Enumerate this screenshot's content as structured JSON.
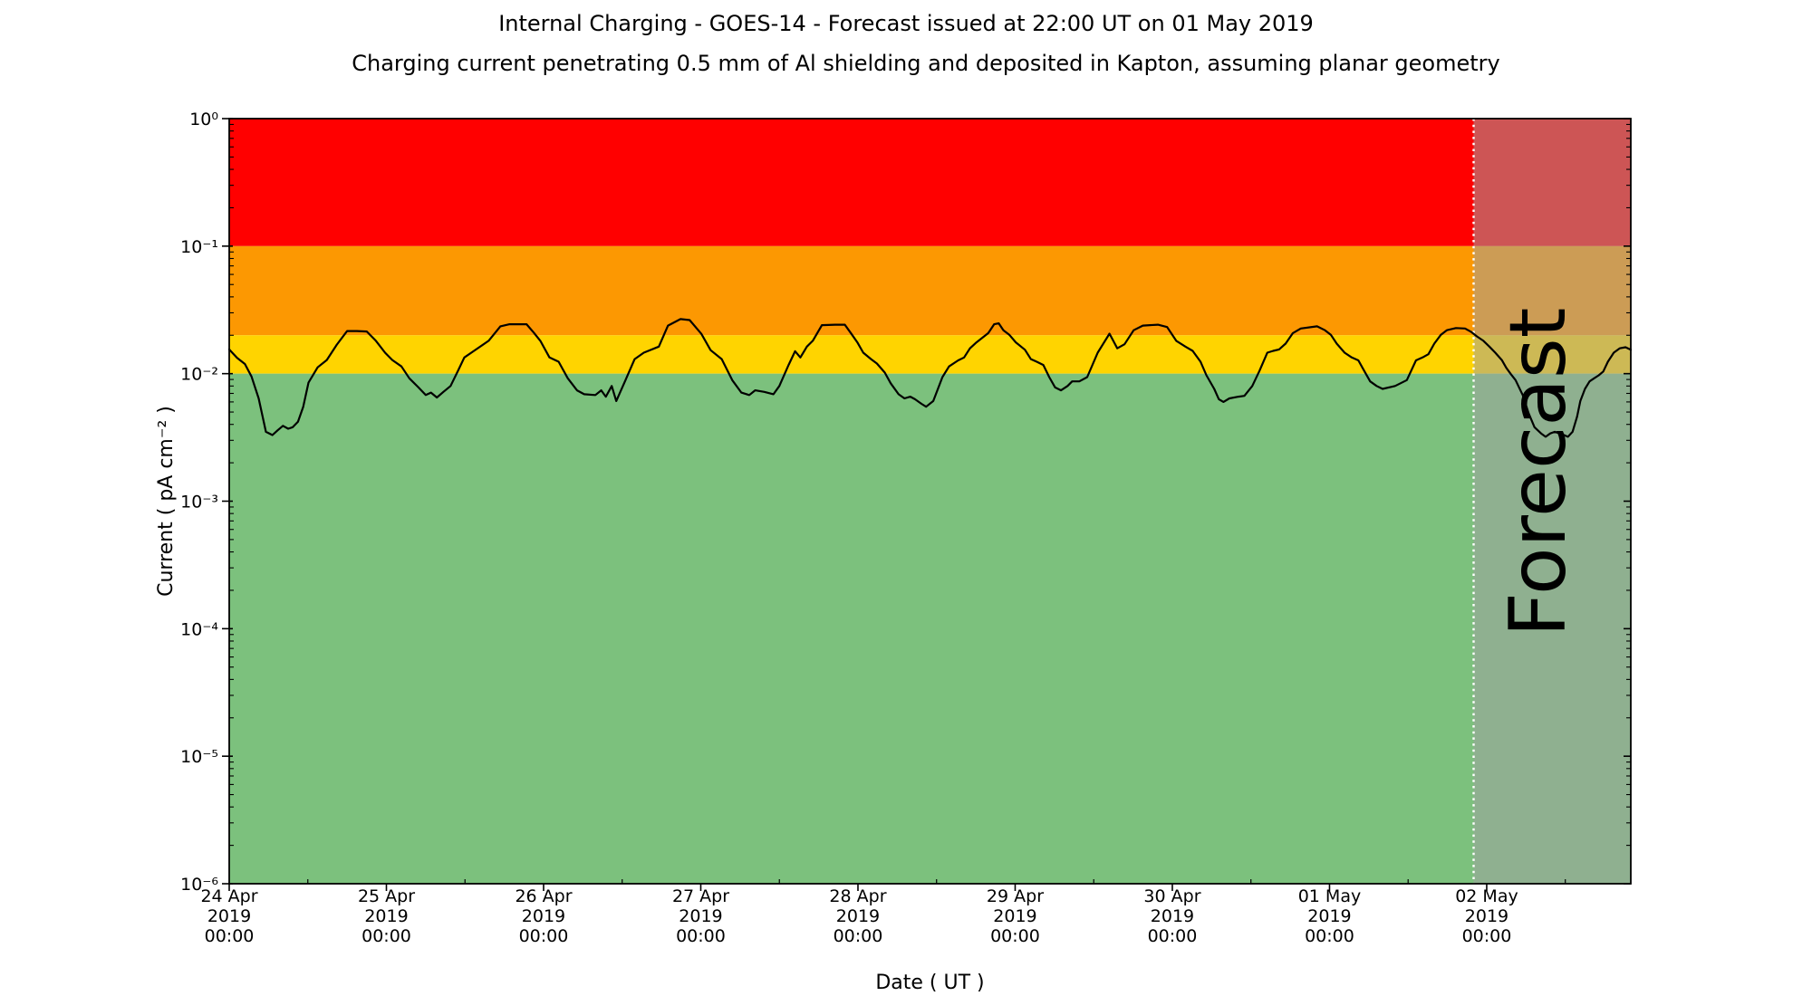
{
  "chart_data": {
    "type": "line",
    "title": "Internal Charging - GOES-14 - Forecast issued at 22:00 UT on 01 May 2019",
    "subtitle": "Charging current penetrating 0.5 mm of Al shielding and deposited in Kapton, assuming planar geometry",
    "xlabel": "Date ( UT )",
    "ylabel": "Current ( pA cm⁻² )",
    "y_scale": "log",
    "ylim": [
      1e-06,
      1
    ],
    "x_range_hours": [
      0,
      214
    ],
    "grid": "off",
    "legend": "none",
    "x_ticks": [
      {
        "hours": 0,
        "lines": [
          "24 Apr",
          "2019",
          "00:00"
        ]
      },
      {
        "hours": 24,
        "lines": [
          "25 Apr",
          "2019",
          "00:00"
        ]
      },
      {
        "hours": 48,
        "lines": [
          "26 Apr",
          "2019",
          "00:00"
        ]
      },
      {
        "hours": 72,
        "lines": [
          "27 Apr",
          "2019",
          "00:00"
        ]
      },
      {
        "hours": 96,
        "lines": [
          "28 Apr",
          "2019",
          "00:00"
        ]
      },
      {
        "hours": 120,
        "lines": [
          "29 Apr",
          "2019",
          "00:00"
        ]
      },
      {
        "hours": 144,
        "lines": [
          "30 Apr",
          "2019",
          "00:00"
        ]
      },
      {
        "hours": 168,
        "lines": [
          "01 May",
          "2019",
          "00:00"
        ]
      },
      {
        "hours": 192,
        "lines": [
          "02 May",
          "2019",
          "00:00"
        ]
      }
    ],
    "x_minor_tick_hours": [
      12,
      36,
      60,
      84,
      108,
      132,
      156,
      180,
      204
    ],
    "y_ticks": [
      {
        "value": 1,
        "label": "10⁰"
      },
      {
        "value": 0.1,
        "label": "10⁻¹"
      },
      {
        "value": 0.01,
        "label": "10⁻²"
      },
      {
        "value": 0.001,
        "label": "10⁻³"
      },
      {
        "value": 0.0001,
        "label": "10⁻⁴"
      },
      {
        "value": 1e-05,
        "label": "10⁻⁵"
      },
      {
        "value": 1e-06,
        "label": "10⁻⁶"
      }
    ],
    "bands": [
      {
        "name": "red",
        "color": "#ff0000",
        "from": 0.1,
        "to": 1
      },
      {
        "name": "orange",
        "color": "#fc9802",
        "from": 0.02,
        "to": 0.1
      },
      {
        "name": "yellow",
        "color": "#ffd400",
        "from": 0.01,
        "to": 0.02
      },
      {
        "name": "green",
        "color": "#7cc17d",
        "from": 1e-06,
        "to": 0.01
      }
    ],
    "forecast": {
      "label": "Forecast",
      "start_hours": 190,
      "start_time": "01 May 2019 22:00 UT",
      "overlay_color": "rgba(161,161,161,0.53)",
      "divider_color": "#ffffff",
      "watermark_color": "rgba(80,80,80,0.32)"
    },
    "series": [
      {
        "name": "charging-current",
        "color": "#000000",
        "points": [
          [
            0,
            0.0155
          ],
          [
            1.2,
            0.0133
          ],
          [
            2.4,
            0.0119
          ],
          [
            3.4,
            0.0095
          ],
          [
            4.5,
            0.0064
          ],
          [
            5.6,
            0.0035
          ],
          [
            6.6,
            0.0033
          ],
          [
            7.4,
            0.0036
          ],
          [
            8.2,
            0.0039
          ],
          [
            9,
            0.0037
          ],
          [
            9.7,
            0.0038
          ],
          [
            10.5,
            0.0042
          ],
          [
            11.3,
            0.0055
          ],
          [
            12.1,
            0.0085
          ],
          [
            13.5,
            0.0112
          ],
          [
            14.9,
            0.0128
          ],
          [
            16.4,
            0.0168
          ],
          [
            18,
            0.0216
          ],
          [
            19.5,
            0.0216
          ],
          [
            21,
            0.0214
          ],
          [
            22.4,
            0.0181
          ],
          [
            23.8,
            0.0146
          ],
          [
            24.9,
            0.0128
          ],
          [
            26.3,
            0.0114
          ],
          [
            27.5,
            0.0092
          ],
          [
            28.9,
            0.0078
          ],
          [
            30,
            0.0068
          ],
          [
            30.8,
            0.0071
          ],
          [
            31.7,
            0.0065
          ],
          [
            32.7,
            0.0072
          ],
          [
            33.8,
            0.008
          ],
          [
            35,
            0.0107
          ],
          [
            35.9,
            0.0134
          ],
          [
            37.3,
            0.015
          ],
          [
            39.6,
            0.0181
          ],
          [
            41.4,
            0.0235
          ],
          [
            42.8,
            0.0244
          ],
          [
            45.4,
            0.0244
          ],
          [
            46.5,
            0.021
          ],
          [
            47.5,
            0.0181
          ],
          [
            48.9,
            0.0134
          ],
          [
            50.3,
            0.0124
          ],
          [
            51.7,
            0.0092
          ],
          [
            53.1,
            0.0074
          ],
          [
            54.2,
            0.0069
          ],
          [
            55.9,
            0.0068
          ],
          [
            56.8,
            0.0074
          ],
          [
            57.5,
            0.0066
          ],
          [
            58.4,
            0.008
          ],
          [
            59.1,
            0.0061
          ],
          [
            60.5,
            0.0089
          ],
          [
            61.9,
            0.013
          ],
          [
            63.3,
            0.0146
          ],
          [
            65.6,
            0.0163
          ],
          [
            67,
            0.0238
          ],
          [
            68.9,
            0.0268
          ],
          [
            70.3,
            0.0263
          ],
          [
            72.1,
            0.0205
          ],
          [
            73.5,
            0.0153
          ],
          [
            75.2,
            0.013
          ],
          [
            76.8,
            0.0089
          ],
          [
            78.2,
            0.0071
          ],
          [
            79.4,
            0.0068
          ],
          [
            80.3,
            0.0074
          ],
          [
            81.7,
            0.0072
          ],
          [
            83.1,
            0.0069
          ],
          [
            84,
            0.008
          ],
          [
            85.4,
            0.0117
          ],
          [
            86.4,
            0.015
          ],
          [
            87.2,
            0.0134
          ],
          [
            88.2,
            0.0163
          ],
          [
            89.1,
            0.0181
          ],
          [
            90.5,
            0.024
          ],
          [
            92.5,
            0.0242
          ],
          [
            94,
            0.0242
          ],
          [
            95,
            0.0205
          ],
          [
            95.9,
            0.0176
          ],
          [
            96.8,
            0.0146
          ],
          [
            98,
            0.013
          ],
          [
            98.9,
            0.012
          ],
          [
            100.1,
            0.0102
          ],
          [
            101,
            0.0084
          ],
          [
            102.2,
            0.0069
          ],
          [
            103.1,
            0.0064
          ],
          [
            104,
            0.0066
          ],
          [
            104.7,
            0.0063
          ],
          [
            105.7,
            0.0058
          ],
          [
            106.4,
            0.0055
          ],
          [
            107.5,
            0.0061
          ],
          [
            108.9,
            0.0094
          ],
          [
            109.9,
            0.0114
          ],
          [
            111.3,
            0.0127
          ],
          [
            112.2,
            0.0134
          ],
          [
            113.1,
            0.0158
          ],
          [
            114.1,
            0.0176
          ],
          [
            115.9,
            0.0208
          ],
          [
            116.8,
            0.0244
          ],
          [
            117.5,
            0.0248
          ],
          [
            118.2,
            0.0219
          ],
          [
            119.1,
            0.0202
          ],
          [
            120.1,
            0.0176
          ],
          [
            121.5,
            0.0154
          ],
          [
            122.4,
            0.013
          ],
          [
            123.3,
            0.0124
          ],
          [
            124.3,
            0.0117
          ],
          [
            125.2,
            0.0094
          ],
          [
            126.1,
            0.0078
          ],
          [
            127,
            0.0074
          ],
          [
            128,
            0.008
          ],
          [
            128.7,
            0.0087
          ],
          [
            129.8,
            0.0087
          ],
          [
            131,
            0.0094
          ],
          [
            132.6,
            0.0146
          ],
          [
            134.4,
            0.0206
          ],
          [
            135.6,
            0.0158
          ],
          [
            136.7,
            0.017
          ],
          [
            138.1,
            0.0219
          ],
          [
            139.5,
            0.0238
          ],
          [
            141.8,
            0.0242
          ],
          [
            143.2,
            0.0232
          ],
          [
            144.6,
            0.0181
          ],
          [
            146,
            0.0163
          ],
          [
            147.1,
            0.0151
          ],
          [
            148.3,
            0.0124
          ],
          [
            149.2,
            0.0097
          ],
          [
            150.4,
            0.0076
          ],
          [
            151.1,
            0.0063
          ],
          [
            151.8,
            0.006
          ],
          [
            152.7,
            0.0064
          ],
          [
            154.1,
            0.0066
          ],
          [
            155,
            0.0067
          ],
          [
            156.2,
            0.008
          ],
          [
            157.3,
            0.0105
          ],
          [
            158.5,
            0.0146
          ],
          [
            159.4,
            0.0151
          ],
          [
            160.3,
            0.0155
          ],
          [
            161.3,
            0.0172
          ],
          [
            162.4,
            0.0208
          ],
          [
            163.6,
            0.0226
          ],
          [
            166.1,
            0.0235
          ],
          [
            167.3,
            0.0219
          ],
          [
            168.2,
            0.0202
          ],
          [
            169.1,
            0.0172
          ],
          [
            170.3,
            0.0146
          ],
          [
            171.4,
            0.0134
          ],
          [
            172.4,
            0.0127
          ],
          [
            173.3,
            0.0105
          ],
          [
            174.2,
            0.0087
          ],
          [
            175.2,
            0.008
          ],
          [
            176.1,
            0.0076
          ],
          [
            178,
            0.008
          ],
          [
            179.8,
            0.0089
          ],
          [
            181.2,
            0.0127
          ],
          [
            182.2,
            0.0134
          ],
          [
            183.1,
            0.0142
          ],
          [
            184,
            0.0172
          ],
          [
            185,
            0.0202
          ],
          [
            185.9,
            0.0219
          ],
          [
            187.3,
            0.0228
          ],
          [
            188.7,
            0.0226
          ],
          [
            189.6,
            0.0213
          ],
          [
            190.5,
            0.0196
          ],
          [
            191.5,
            0.0181
          ],
          [
            192.4,
            0.0163
          ],
          [
            193.3,
            0.0146
          ],
          [
            194.3,
            0.0128
          ],
          [
            195,
            0.0111
          ],
          [
            195.7,
            0.0099
          ],
          [
            196.4,
            0.0089
          ],
          [
            197.5,
            0.0068
          ],
          [
            198.4,
            0.0049
          ],
          [
            199.3,
            0.0038
          ],
          [
            200.3,
            0.0034
          ],
          [
            201,
            0.0032
          ],
          [
            201.7,
            0.0034
          ],
          [
            202.4,
            0.0035
          ],
          [
            203.1,
            0.0034
          ],
          [
            203.8,
            0.0033
          ],
          [
            204.4,
            0.0032
          ],
          [
            205.1,
            0.0035
          ],
          [
            205.8,
            0.0046
          ],
          [
            206.3,
            0.0061
          ],
          [
            207,
            0.0076
          ],
          [
            207.7,
            0.0087
          ],
          [
            208.4,
            0.0092
          ],
          [
            209.1,
            0.0097
          ],
          [
            209.8,
            0.0104
          ],
          [
            210.5,
            0.0124
          ],
          [
            211.4,
            0.0146
          ],
          [
            212.3,
            0.0158
          ],
          [
            213.2,
            0.0161
          ],
          [
            214,
            0.0154
          ]
        ]
      }
    ]
  }
}
